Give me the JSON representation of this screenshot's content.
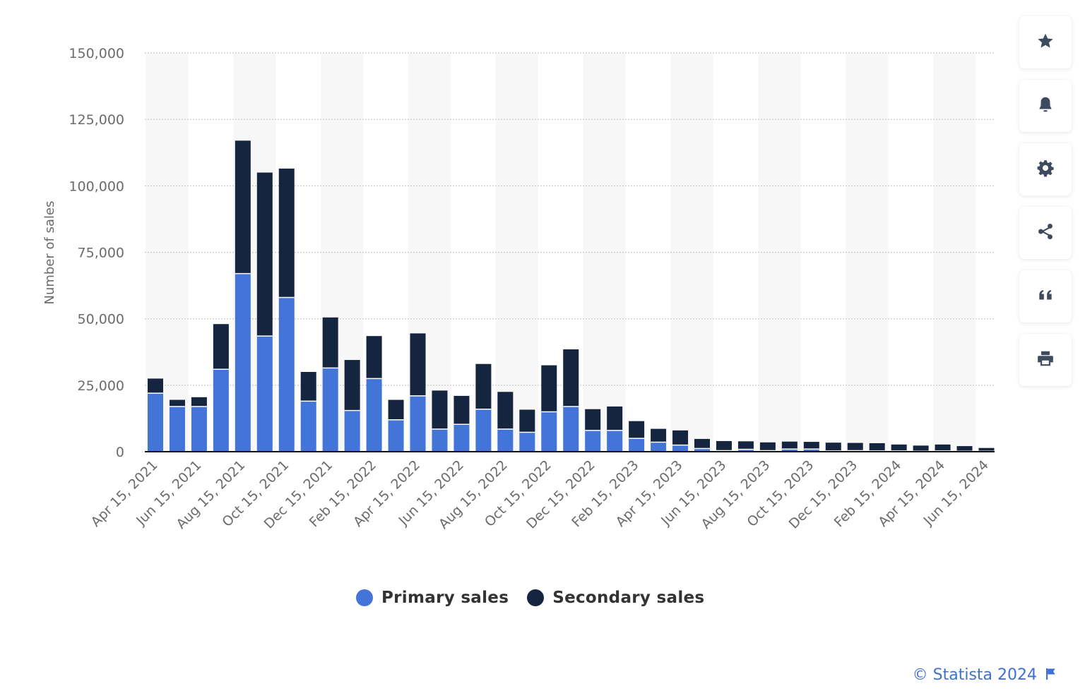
{
  "chart_data": {
    "type": "bar",
    "stacked": true,
    "ylabel": "Number of sales",
    "ylim": [
      0,
      150000
    ],
    "yticks": [
      0,
      25000,
      50000,
      75000,
      100000,
      125000,
      150000
    ],
    "ytick_labels": [
      "0",
      "25,000",
      "50,000",
      "75,000",
      "100,000",
      "125,000",
      "150,000"
    ],
    "grid": "horizontal-dotted",
    "legend_position": "bottom-center",
    "x_labels": [
      "Apr 15, 2021",
      "Jun 15, 2021",
      "Aug 15, 2021",
      "Oct 15, 2021",
      "Dec 15, 2021",
      "Feb 15, 2022",
      "Apr 15, 2022",
      "Jun 15, 2022",
      "Aug 15, 2022",
      "Oct 15, 2022",
      "Dec 15, 2022",
      "Feb 15, 2023",
      "Apr 15, 2023",
      "Jun 15, 2023",
      "Aug 15, 2023",
      "Oct 15, 2023",
      "Dec 15, 2023",
      "Feb 15, 2024",
      "Apr 15, 2024",
      "Jun 15, 2024"
    ],
    "series": [
      {
        "name": "Primary sales",
        "color": "#4374d8",
        "values": [
          22000,
          17000,
          17000,
          31000,
          67000,
          43500,
          58000,
          19000,
          31500,
          15500,
          27500,
          12000,
          21000,
          8500,
          10300,
          16000,
          8500,
          7300,
          15000,
          17000,
          8000,
          8000,
          5000,
          3600,
          2500,
          1200,
          400,
          900,
          400,
          1000,
          1000,
          300,
          400,
          300,
          300,
          200,
          300,
          200,
          200
        ]
      },
      {
        "name": "Secondary sales",
        "color": "#15253f",
        "values": [
          5500,
          2500,
          3500,
          17000,
          50000,
          61500,
          48500,
          11000,
          19000,
          19000,
          16000,
          7500,
          23500,
          14500,
          10700,
          17000,
          14000,
          8500,
          17500,
          21500,
          8000,
          9000,
          6500,
          5000,
          5500,
          3600,
          3600,
          3000,
          3100,
          2800,
          2700,
          3100,
          2900,
          2900,
          2400,
          2100,
          2400,
          1900,
          1200
        ]
      }
    ]
  },
  "legend": {
    "primary_label": "Primary sales",
    "secondary_label": "Secondary sales"
  },
  "toolbar": {
    "icons": [
      "star-icon",
      "bell-icon",
      "gear-icon",
      "share-icon",
      "quote-icon",
      "print-icon"
    ]
  },
  "credit": {
    "text": "© Statista 2024"
  },
  "colors": {
    "primary": "#4374d8",
    "secondary": "#15253f",
    "gridline": "#c8c8c8",
    "band": "#f7f7f7",
    "accent": "#3f6fd8"
  }
}
